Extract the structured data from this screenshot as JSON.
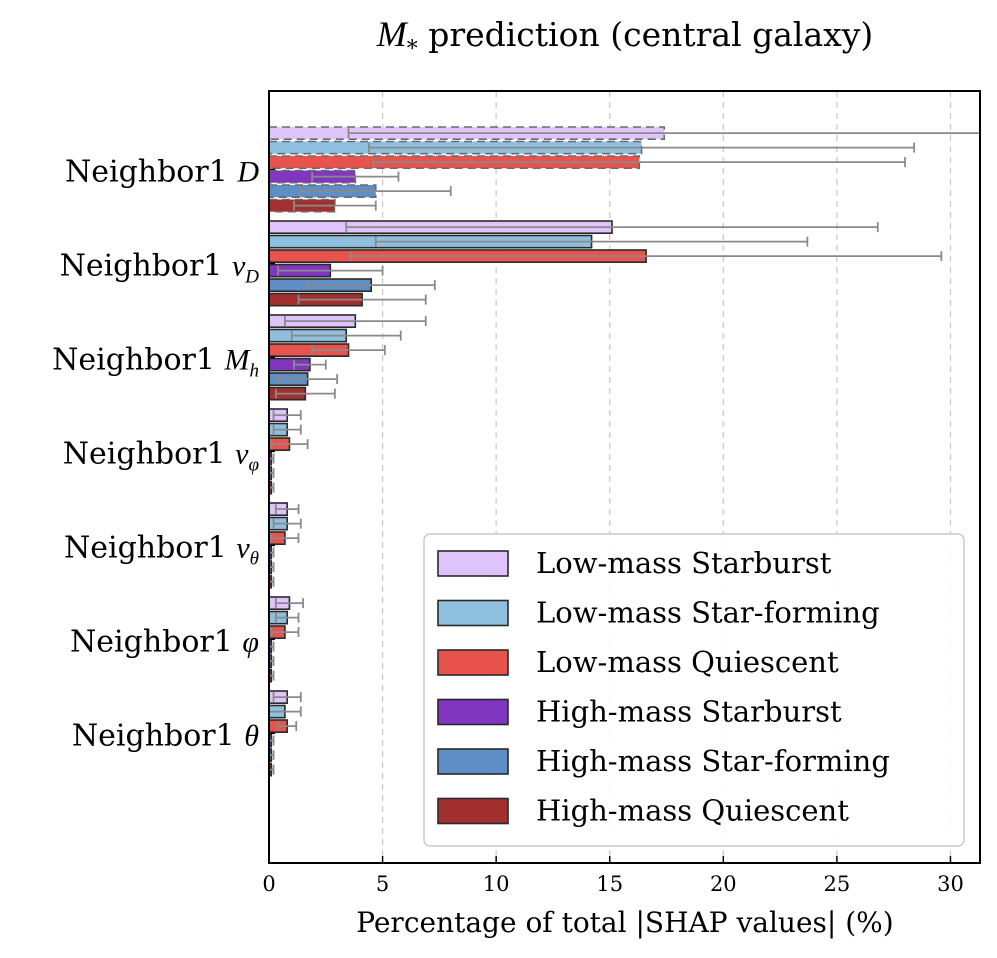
{
  "chart_data": {
    "type": "bar",
    "orientation": "horizontal",
    "title": {
      "symbol": "M",
      "subscript": "*",
      "text": "prediction (central galaxy)"
    },
    "xlabel": "Percentage of total |SHAP values| (%)",
    "xlim": [
      0,
      31.3
    ],
    "xticks": [
      0,
      5,
      10,
      15,
      20,
      25,
      30
    ],
    "grid": "vertical dashed",
    "legend_position": "lower-right",
    "categories": [
      {
        "prefix": "Neighbor1",
        "symbol": "D",
        "subscript": ""
      },
      {
        "prefix": "Neighbor1",
        "symbol": "v",
        "subscript": "D"
      },
      {
        "prefix": "Neighbor1",
        "symbol": "M",
        "subscript": "h"
      },
      {
        "prefix": "Neighbor1",
        "symbol": "v",
        "subscript": "φ"
      },
      {
        "prefix": "Neighbor1",
        "symbol": "v",
        "subscript": "θ"
      },
      {
        "prefix": "Neighbor1",
        "symbol": "φ",
        "subscript": ""
      },
      {
        "prefix": "Neighbor1",
        "symbol": "θ",
        "subscript": ""
      }
    ],
    "series": [
      {
        "name": "Low-mass Starburst",
        "color": "#dfc3fb",
        "values": [
          17.4,
          15.1,
          3.8,
          0.8,
          0.8,
          0.9,
          0.8
        ],
        "errors": [
          13.9,
          11.7,
          3.1,
          0.6,
          0.5,
          0.6,
          0.6
        ]
      },
      {
        "name": "Low-mass Star-forming",
        "color": "#8ebfdf",
        "values": [
          16.4,
          14.2,
          3.4,
          0.8,
          0.8,
          0.8,
          0.7
        ],
        "errors": [
          12.0,
          9.5,
          2.4,
          0.6,
          0.6,
          0.5,
          0.7
        ]
      },
      {
        "name": "Low-mass Quiescent",
        "color": "#e8544d",
        "values": [
          16.3,
          16.6,
          3.5,
          0.9,
          0.7,
          0.7,
          0.8
        ],
        "errors": [
          11.7,
          13.0,
          1.6,
          0.8,
          0.6,
          0.6,
          0.4
        ]
      },
      {
        "name": "High-mass Starburst",
        "color": "#8036be",
        "values": [
          3.8,
          2.7,
          1.8,
          0.1,
          0.1,
          0.1,
          0.1
        ],
        "errors": [
          1.9,
          2.3,
          0.7,
          0.1,
          0.1,
          0.1,
          0.1
        ]
      },
      {
        "name": "High-mass Star-forming",
        "color": "#5f8ec6",
        "values": [
          4.7,
          4.5,
          1.7,
          0.1,
          0.1,
          0.1,
          0.1
        ],
        "errors": [
          3.3,
          2.8,
          1.3,
          0.1,
          0.1,
          0.1,
          0.1
        ]
      },
      {
        "name": "High-mass Quiescent",
        "color": "#a2302e",
        "values": [
          2.9,
          4.1,
          1.6,
          0.1,
          0.1,
          0.1,
          0.1
        ],
        "errors": [
          1.8,
          2.8,
          1.3,
          0.1,
          0.1,
          0.1,
          0.1
        ]
      }
    ],
    "hatched_category": 0
  }
}
